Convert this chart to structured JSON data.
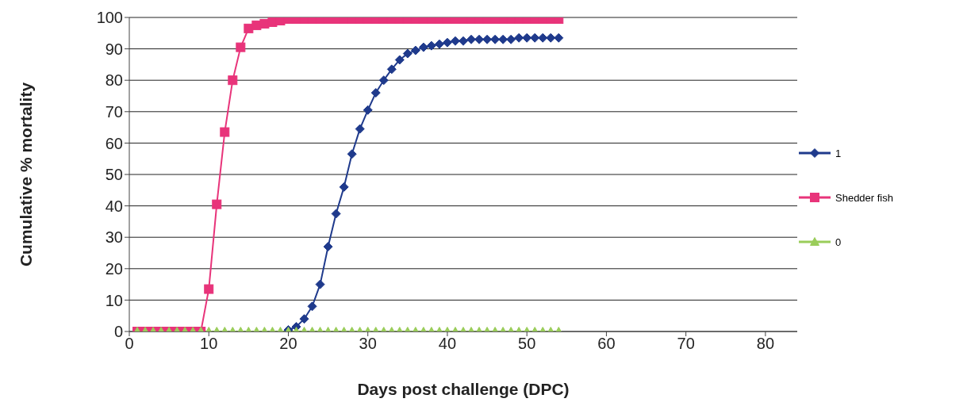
{
  "chart_data": {
    "type": "line",
    "xlabel": "Days post challenge (DPC)",
    "ylabel": "Cumulative % mortality",
    "x": [
      1,
      2,
      3,
      4,
      5,
      6,
      7,
      8,
      9,
      10,
      11,
      12,
      13,
      14,
      15,
      16,
      17,
      18,
      19,
      20,
      21,
      22,
      23,
      24,
      25,
      26,
      27,
      28,
      29,
      30,
      31,
      32,
      33,
      34,
      35,
      36,
      37,
      38,
      39,
      40,
      41,
      42,
      43,
      44,
      45,
      46,
      47,
      48,
      49,
      50,
      51,
      52,
      53,
      54
    ],
    "series": [
      {
        "name": "1",
        "color": "#1f3a8c",
        "marker": "diamond",
        "values": [
          null,
          null,
          null,
          null,
          null,
          null,
          null,
          null,
          null,
          null,
          null,
          null,
          null,
          null,
          null,
          null,
          null,
          null,
          null,
          0.5,
          1.5,
          4,
          8,
          15,
          27,
          37.5,
          46,
          56.5,
          64.5,
          70.5,
          76,
          80,
          83.5,
          86.5,
          88.5,
          89.5,
          90.5,
          91,
          91.5,
          92,
          92.5,
          92.5,
          93,
          93,
          93,
          93,
          93,
          93,
          93.5,
          93.5,
          93.5,
          93.5,
          93.5,
          93.5
        ]
      },
      {
        "name": "Shedder fish",
        "color": "#e8347a",
        "marker": "square",
        "values": [
          0,
          0,
          0,
          0,
          0,
          0,
          0,
          0,
          0,
          13.5,
          40.5,
          63.5,
          80,
          90.5,
          96.5,
          97.5,
          98,
          98.5,
          99,
          99.5,
          99.5,
          99.5,
          99.5,
          99.5,
          99.5,
          99.5,
          99.5,
          99.5,
          99.5,
          99.5,
          99.5,
          99.5,
          99.5,
          99.5,
          99.5,
          99.5,
          99.5,
          99.5,
          99.5,
          99.5,
          99.5,
          99.5,
          99.5,
          99.5,
          99.5,
          99.5,
          99.5,
          99.5,
          99.5,
          99.5,
          99.5,
          99.5,
          99.5,
          99.5
        ]
      },
      {
        "name": "0",
        "color": "#9acd5a",
        "marker": "triangle",
        "values": [
          0,
          0,
          0,
          0,
          0,
          0,
          0,
          0,
          0,
          0,
          0,
          0,
          0,
          0,
          0,
          0,
          0,
          0,
          0,
          0,
          0,
          0,
          0,
          0,
          0,
          0,
          0,
          0,
          0,
          0,
          0,
          0,
          0,
          0,
          0,
          0,
          0,
          0,
          0,
          0,
          0,
          0,
          0,
          0,
          0,
          0,
          0,
          0,
          0,
          0,
          0,
          0,
          0,
          0
        ]
      }
    ],
    "xlim": [
      0,
      84
    ],
    "xticks": [
      0,
      10,
      20,
      30,
      40,
      50,
      60,
      70,
      80
    ],
    "ylim": [
      0,
      100
    ],
    "yticks": [
      0,
      10,
      20,
      30,
      40,
      50,
      60,
      70,
      80,
      90,
      100
    ],
    "grid": "y",
    "legend": "right",
    "line_style": "solid"
  }
}
